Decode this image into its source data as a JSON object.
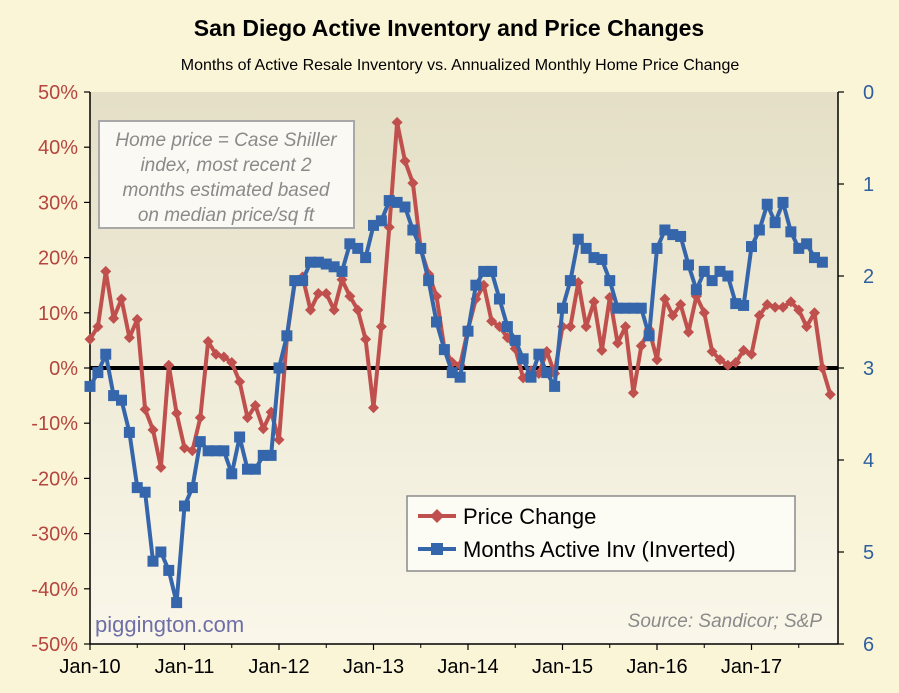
{
  "chart_data": {
    "type": "line",
    "title": "San Diego Active Inventory and Price Changes",
    "subtitle": "Months of Active Resale Inventory vs. Annualized Monthly Home Price Change",
    "x_ticks": [
      "Jan-10",
      "Jan-11",
      "Jan-12",
      "Jan-13",
      "Jan-14",
      "Jan-15",
      "Jan-16",
      "Jan-17"
    ],
    "left_axis": {
      "ticks": [
        "50%",
        "40%",
        "30%",
        "20%",
        "10%",
        "0%",
        "-10%",
        "-20%",
        "-30%",
        "-40%",
        "-50%"
      ],
      "ylim": [
        -50,
        50
      ],
      "color": "#b5463f"
    },
    "right_axis": {
      "ticks": [
        "0",
        "1",
        "2",
        "3",
        "4",
        "5",
        "6"
      ],
      "ylim": [
        0,
        6
      ],
      "inverted": true,
      "color": "#2e5f9e"
    },
    "start": "2010-01",
    "series": [
      {
        "name": "Price Change",
        "axis": "left",
        "color": "#c0504d",
        "values": [
          5.2,
          7.5,
          17.5,
          9.0,
          12.5,
          5.5,
          8.8,
          -7.5,
          -11.2,
          -18.0,
          0.5,
          -8.2,
          -14.5,
          -15.0,
          -9.0,
          4.8,
          2.5,
          2.0,
          1.0,
          -2.5,
          -9.0,
          -6.8,
          -11.0,
          -8.0,
          -13.0,
          5.5,
          15.5,
          16.5,
          10.5,
          13.5,
          13.5,
          10.5,
          16.0,
          13.0,
          10.5,
          5.2,
          -7.2,
          7.5,
          25.5,
          44.5,
          37.5,
          33.5,
          21.5,
          17.0,
          13.0,
          3.5,
          1.0,
          0.5,
          7.0,
          12.5,
          15.0,
          8.5,
          7.5,
          5.5,
          3.5,
          -1.8,
          -0.5,
          -1.0,
          3.0,
          -1.0,
          7.5,
          7.5,
          15.5,
          7.5,
          12.0,
          3.2,
          12.8,
          4.5,
          7.5,
          -4.5,
          4.0,
          7.0,
          1.5,
          12.5,
          9.5,
          11.5,
          6.5,
          13.0,
          10.0,
          3.0,
          1.5,
          0.5,
          1.0,
          3.2,
          2.5,
          9.5,
          11.5,
          11.0,
          11.0,
          12.0,
          10.5,
          7.5,
          10.0,
          0.0,
          -4.8
        ]
      },
      {
        "name": "Months Active Inv (Inverted)",
        "axis": "right",
        "color": "#3566ab",
        "values": [
          3.2,
          3.05,
          2.85,
          3.3,
          3.35,
          3.7,
          4.3,
          4.35,
          5.1,
          5.0,
          5.2,
          5.55,
          4.5,
          4.3,
          3.8,
          3.9,
          3.9,
          3.9,
          4.15,
          3.75,
          4.1,
          4.1,
          3.95,
          3.95,
          3.0,
          2.65,
          2.05,
          2.05,
          1.85,
          1.85,
          1.87,
          1.9,
          1.95,
          1.65,
          1.7,
          1.8,
          1.45,
          1.4,
          1.18,
          1.2,
          1.25,
          1.5,
          1.7,
          2.05,
          2.5,
          2.8,
          3.05,
          3.1,
          2.6,
          2.1,
          1.95,
          1.95,
          2.25,
          2.55,
          2.7,
          2.9,
          3.1,
          2.85,
          3.05,
          3.2,
          2.35,
          2.05,
          1.6,
          1.7,
          1.8,
          1.82,
          2.05,
          2.35,
          2.35,
          2.35,
          2.35,
          2.65,
          1.7,
          1.5,
          1.55,
          1.57,
          1.88,
          2.15,
          1.95,
          2.05,
          1.95,
          2.0,
          2.3,
          2.32,
          1.68,
          1.5,
          1.22,
          1.42,
          1.2,
          1.52,
          1.7,
          1.65,
          1.8,
          1.85
        ]
      }
    ],
    "legend": [
      "Price Change",
      "Months Active Inv (Inverted)"
    ],
    "legend_position": "bottom-right",
    "annotation": "Home price = Case Shiller index, most recent 2 months estimated based on median price/sq ft",
    "watermark": "piggington.com",
    "source": "Source: Sandicor; S&P"
  }
}
